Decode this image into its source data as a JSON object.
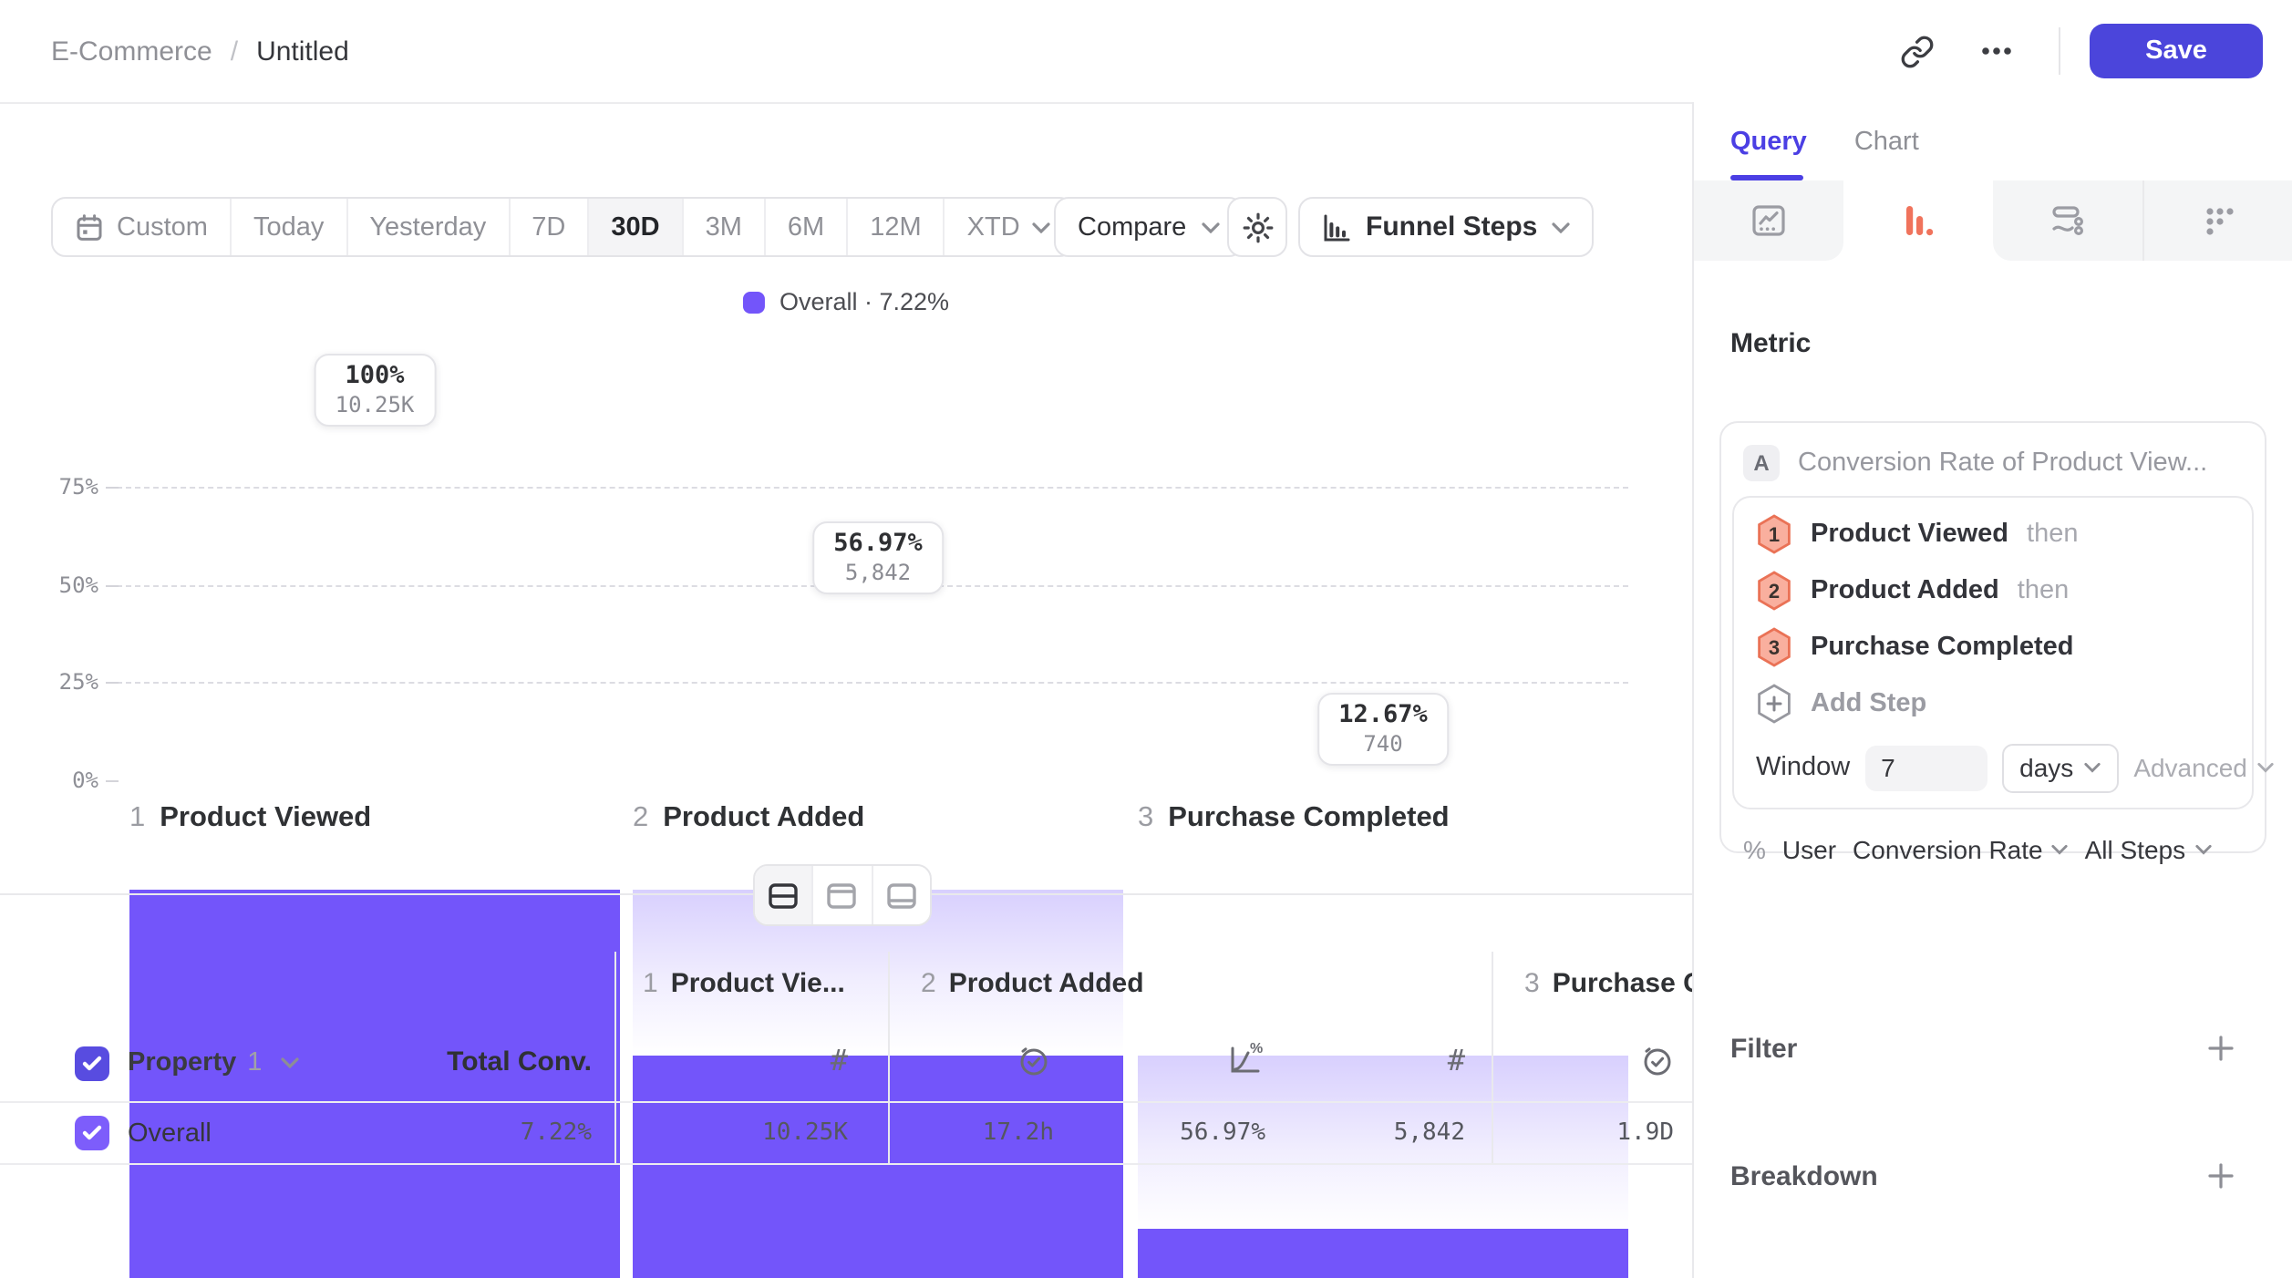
{
  "topbar": {
    "breadcrumb": {
      "parent": "E-Commerce",
      "separator": "/",
      "current": "Untitled"
    },
    "save_label": "Save"
  },
  "toolbar": {
    "ranges": [
      "Custom",
      "Today",
      "Yesterday",
      "7D",
      "30D",
      "3M",
      "6M",
      "12M",
      "XTD"
    ],
    "selected_range": "30D",
    "compare_label": "Compare",
    "chart_type_label": "Funnel Steps"
  },
  "legend": {
    "label": "Overall · 7.22%"
  },
  "chart_data": {
    "type": "bar",
    "subtype": "funnel-steps",
    "categories": [
      "Product Viewed",
      "Product Added",
      "Purchase Completed"
    ],
    "step_numbers": [
      "1",
      "2",
      "3"
    ],
    "values_pct": [
      100,
      56.97,
      12.67
    ],
    "counts": [
      10250,
      5842,
      740
    ],
    "value_labels": [
      "100%",
      "56.97%",
      "12.67%"
    ],
    "count_labels": [
      "10.25K",
      "5,842",
      "740"
    ],
    "yticks": {
      "t75": "75%",
      "t50": "50%",
      "t25": "25%",
      "t0": "0%"
    },
    "ylim": [
      0,
      100
    ],
    "grid": "dashed horizontal at 25/50/75",
    "legend_position": "top-center",
    "bar_color": "#7355fa",
    "overall_conversion": "7.22%"
  },
  "view_toggle": {
    "options": [
      "split-view",
      "chart-view",
      "table-view"
    ],
    "selected": "split-view"
  },
  "table": {
    "property_label": "Property",
    "property_index": "1",
    "total_conv_label": "Total Conv.",
    "columns": [
      {
        "num": "1",
        "title": "Product Vie..."
      },
      {
        "num": "2",
        "title": "Product Added"
      },
      {
        "num": "3",
        "title": "Purchase C"
      }
    ],
    "row": {
      "name": "Overall",
      "total_conv": "7.22%",
      "step1_count": "10.25K",
      "step2_time": "17.2h",
      "step2_rate": "56.97%",
      "step2_count": "5,842",
      "step3_time": "1.9D"
    }
  },
  "panel": {
    "tabs": {
      "query": "Query",
      "chart": "Chart"
    },
    "metric": {
      "heading": "Metric",
      "series_letter": "A",
      "series_title": "Conversion Rate of Product View...",
      "steps": [
        {
          "num": "1",
          "name": "Product Viewed",
          "suffix": "then"
        },
        {
          "num": "2",
          "name": "Product Added",
          "suffix": "then"
        },
        {
          "num": "3",
          "name": "Purchase Completed",
          "suffix": ""
        }
      ],
      "add_step_label": "Add Step",
      "window_label": "Window",
      "window_value": "7",
      "window_unit": "days",
      "advanced_label": "Advanced",
      "measure": {
        "pct": "%",
        "user": "User",
        "type": "Conversion Rate",
        "scope": "All Steps"
      }
    },
    "filter": {
      "label": "Filter"
    },
    "breakdown": {
      "label": "Breakdown"
    }
  },
  "colors": {
    "accent_purple": "#7355fa",
    "save_indigo": "#4b45db",
    "query_tab": "#4b3fe4",
    "funnel_icon_orange": "#f0735c",
    "step_badge_fill": "#f9af9e",
    "step_badge_border": "#ea7256"
  }
}
